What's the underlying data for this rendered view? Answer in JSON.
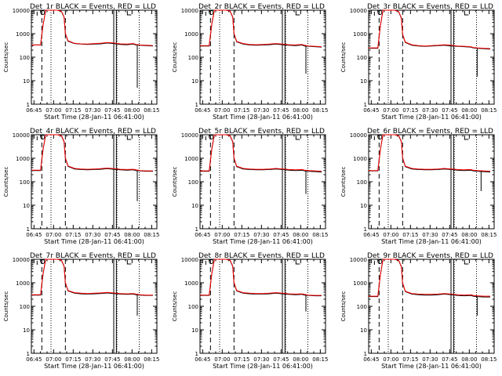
{
  "chart_data": {
    "type": "line",
    "layout": "3x3 grid",
    "ylabel": "Counts/sec",
    "xlabel": "Start Time (28-Jan-11 06:41:00)",
    "x_tick_labels": [
      "06:45",
      "07:00",
      "07:15",
      "07:30",
      "07:45",
      "08:00",
      "08:15"
    ],
    "x_tick_minutes": [
      4,
      19,
      34,
      49,
      64,
      79,
      94
    ],
    "xlim_minutes_after_start": [
      2,
      98
    ],
    "yscale": "log",
    "ylim": [
      1,
      10000
    ],
    "y_tick_labels": [
      "1",
      "10",
      "100",
      "1000",
      "10000"
    ],
    "legend_note": "BLACK = Events, RED = LLD",
    "series_colors": {
      "events": "#000000",
      "lld": "#ff0000"
    },
    "dashed_markers_minutes": [
      10,
      28
    ],
    "dotted_markers_minutes": [
      17,
      67.5,
      84.5
    ],
    "solid_markers_minutes": [
      65,
      67
    ],
    "panels": [
      {
        "title": "Det_1r BLACK = Events, RED = LLD",
        "x": [
          2,
          9,
          11,
          13,
          15,
          17,
          19,
          22,
          25,
          27,
          28,
          30,
          35,
          40,
          45,
          50,
          55,
          60,
          65,
          70,
          75,
          80,
          82,
          85,
          90,
          95
        ],
        "events": [
          330,
          330,
          2500,
          10000,
          10000,
          10000,
          10000,
          10000,
          9000,
          5000,
          1000,
          480,
          380,
          360,
          350,
          360,
          370,
          400,
          380,
          350,
          340,
          360,
          330,
          320,
          310,
          300
        ],
        "lld": [
          330,
          330,
          2600,
          10000,
          10000,
          10000,
          10000,
          10000,
          9000,
          5200,
          1050,
          500,
          390,
          370,
          360,
          380,
          390,
          420,
          400,
          370,
          360,
          380,
          350,
          330,
          320,
          310
        ],
        "drop": {
          "x": 83,
          "to": 5
        }
      },
      {
        "title": "Det_2r BLACK = Events, RED = LLD",
        "x": [
          2,
          9,
          11,
          13,
          15,
          17,
          19,
          22,
          25,
          27,
          28,
          30,
          35,
          40,
          45,
          50,
          55,
          60,
          65,
          70,
          75,
          80,
          82,
          85,
          90,
          95
        ],
        "events": [
          300,
          300,
          2500,
          10000,
          10000,
          10000,
          10000,
          10000,
          9000,
          5000,
          1000,
          450,
          360,
          330,
          320,
          330,
          340,
          360,
          340,
          320,
          310,
          330,
          300,
          290,
          280,
          270
        ],
        "lld": [
          310,
          310,
          2600,
          10000,
          10000,
          10000,
          10000,
          10000,
          9200,
          5200,
          1050,
          470,
          380,
          350,
          340,
          350,
          360,
          380,
          360,
          340,
          330,
          350,
          320,
          300,
          290,
          280
        ],
        "drop": {
          "x": 83,
          "to": 20
        }
      },
      {
        "title": "Det_3r BLACK = Events, RED = LLD",
        "x": [
          2,
          9,
          11,
          13,
          15,
          17,
          19,
          22,
          25,
          27,
          28,
          30,
          35,
          40,
          45,
          50,
          55,
          60,
          65,
          70,
          75,
          80,
          82,
          85,
          90,
          95
        ],
        "events": [
          240,
          240,
          2200,
          10000,
          10000,
          10000,
          10000,
          10000,
          8500,
          4500,
          900,
          420,
          320,
          300,
          290,
          300,
          310,
          320,
          300,
          290,
          280,
          270,
          250,
          240,
          230,
          220
        ],
        "lld": [
          250,
          250,
          2300,
          10000,
          10000,
          10000,
          10000,
          10000,
          8700,
          4700,
          950,
          440,
          340,
          310,
          300,
          310,
          320,
          340,
          320,
          300,
          290,
          280,
          260,
          250,
          240,
          230
        ],
        "drop": {
          "x": 85,
          "to": 15
        }
      },
      {
        "title": "Det_4r BLACK = Events, RED = LLD",
        "x": [
          2,
          9,
          11,
          13,
          15,
          17,
          19,
          22,
          25,
          27,
          28,
          30,
          35,
          40,
          45,
          50,
          55,
          60,
          65,
          70,
          75,
          80,
          82,
          85,
          90,
          95
        ],
        "events": [
          300,
          300,
          2500,
          10000,
          10000,
          10000,
          10000,
          10000,
          9000,
          5000,
          1000,
          450,
          350,
          330,
          320,
          330,
          340,
          360,
          340,
          320,
          310,
          320,
          300,
          290,
          280,
          280
        ],
        "lld": [
          310,
          310,
          2600,
          10000,
          10000,
          10000,
          10000,
          10000,
          9200,
          5200,
          1050,
          470,
          370,
          350,
          340,
          350,
          360,
          380,
          360,
          340,
          330,
          340,
          320,
          300,
          290,
          290
        ],
        "drop": {
          "x": 83,
          "to": 15
        }
      },
      {
        "title": "Det_5r BLACK = Events, RED = LLD",
        "x": [
          2,
          9,
          11,
          13,
          15,
          17,
          19,
          22,
          25,
          27,
          28,
          30,
          35,
          40,
          45,
          50,
          55,
          60,
          65,
          70,
          75,
          80,
          82,
          85,
          90,
          95
        ],
        "events": [
          280,
          280,
          2400,
          10000,
          10000,
          10000,
          10000,
          10000,
          9000,
          5000,
          1000,
          440,
          350,
          330,
          320,
          320,
          330,
          350,
          330,
          310,
          300,
          310,
          290,
          280,
          270,
          260
        ],
        "lld": [
          290,
          290,
          2500,
          10000,
          10000,
          10000,
          10000,
          10000,
          9200,
          5200,
          1050,
          460,
          370,
          350,
          340,
          340,
          350,
          370,
          350,
          330,
          320,
          330,
          310,
          300,
          290,
          280
        ],
        "drop": {
          "x": 83,
          "to": 30
        }
      },
      {
        "title": "Det_6r BLACK = Events, RED = LLD",
        "x": [
          2,
          9,
          11,
          13,
          15,
          17,
          19,
          22,
          25,
          27,
          28,
          30,
          35,
          40,
          45,
          50,
          55,
          60,
          65,
          70,
          75,
          80,
          82,
          85,
          90,
          95
        ],
        "events": [
          290,
          290,
          2400,
          10000,
          10000,
          10000,
          10000,
          10000,
          9000,
          5000,
          1000,
          440,
          350,
          330,
          320,
          320,
          330,
          350,
          330,
          310,
          300,
          310,
          290,
          280,
          270,
          260
        ],
        "lld": [
          300,
          300,
          2500,
          10000,
          10000,
          10000,
          10000,
          10000,
          9200,
          5200,
          1050,
          460,
          370,
          350,
          340,
          340,
          350,
          370,
          350,
          330,
          320,
          330,
          310,
          300,
          290,
          280
        ],
        "drop": {
          "x": 88,
          "to": 40
        }
      },
      {
        "title": "Det_7r BLACK = Events, RED = LLD",
        "x": [
          2,
          9,
          11,
          13,
          15,
          17,
          19,
          22,
          25,
          27,
          28,
          30,
          35,
          40,
          45,
          50,
          55,
          60,
          65,
          70,
          75,
          80,
          82,
          85,
          90,
          95
        ],
        "events": [
          300,
          300,
          2500,
          10000,
          10000,
          10000,
          10000,
          10000,
          9000,
          5000,
          1000,
          450,
          360,
          340,
          330,
          340,
          350,
          370,
          350,
          330,
          320,
          330,
          310,
          300,
          290,
          290
        ],
        "lld": [
          310,
          310,
          2600,
          10000,
          10000,
          10000,
          10000,
          10000,
          9200,
          5200,
          1050,
          470,
          380,
          360,
          350,
          360,
          370,
          390,
          370,
          350,
          340,
          350,
          330,
          310,
          300,
          300
        ],
        "drop": {
          "x": 83,
          "to": 40
        }
      },
      {
        "title": "Det_8r BLACK = Events, RED = LLD",
        "x": [
          2,
          9,
          11,
          13,
          15,
          17,
          19,
          22,
          25,
          27,
          28,
          30,
          35,
          40,
          45,
          50,
          55,
          60,
          65,
          70,
          75,
          80,
          82,
          85,
          90,
          95
        ],
        "events": [
          290,
          290,
          2400,
          10000,
          10000,
          10000,
          10000,
          10000,
          9000,
          5000,
          1000,
          450,
          360,
          340,
          330,
          330,
          340,
          360,
          340,
          320,
          310,
          320,
          300,
          290,
          280,
          280
        ],
        "lld": [
          300,
          300,
          2500,
          10000,
          10000,
          10000,
          10000,
          10000,
          9200,
          5200,
          1050,
          470,
          380,
          360,
          350,
          350,
          360,
          380,
          360,
          340,
          330,
          340,
          320,
          300,
          290,
          290
        ],
        "drop": {
          "x": 83,
          "to": 60
        }
      },
      {
        "title": "Det_9r BLACK = Events, RED = LLD",
        "x": [
          2,
          9,
          11,
          13,
          15,
          17,
          19,
          22,
          25,
          27,
          28,
          30,
          35,
          40,
          45,
          50,
          55,
          60,
          65,
          70,
          75,
          80,
          82,
          85,
          90,
          95
        ],
        "events": [
          260,
          260,
          2200,
          10000,
          10000,
          10000,
          10000,
          10000,
          8800,
          4800,
          950,
          420,
          330,
          310,
          300,
          300,
          310,
          330,
          310,
          290,
          280,
          290,
          270,
          260,
          250,
          250
        ],
        "lld": [
          270,
          270,
          2300,
          10000,
          10000,
          10000,
          10000,
          10000,
          9000,
          5000,
          1000,
          440,
          350,
          330,
          320,
          320,
          330,
          350,
          330,
          310,
          300,
          310,
          290,
          280,
          270,
          270
        ],
        "drop": {
          "x": 85,
          "to": 40
        }
      }
    ]
  }
}
